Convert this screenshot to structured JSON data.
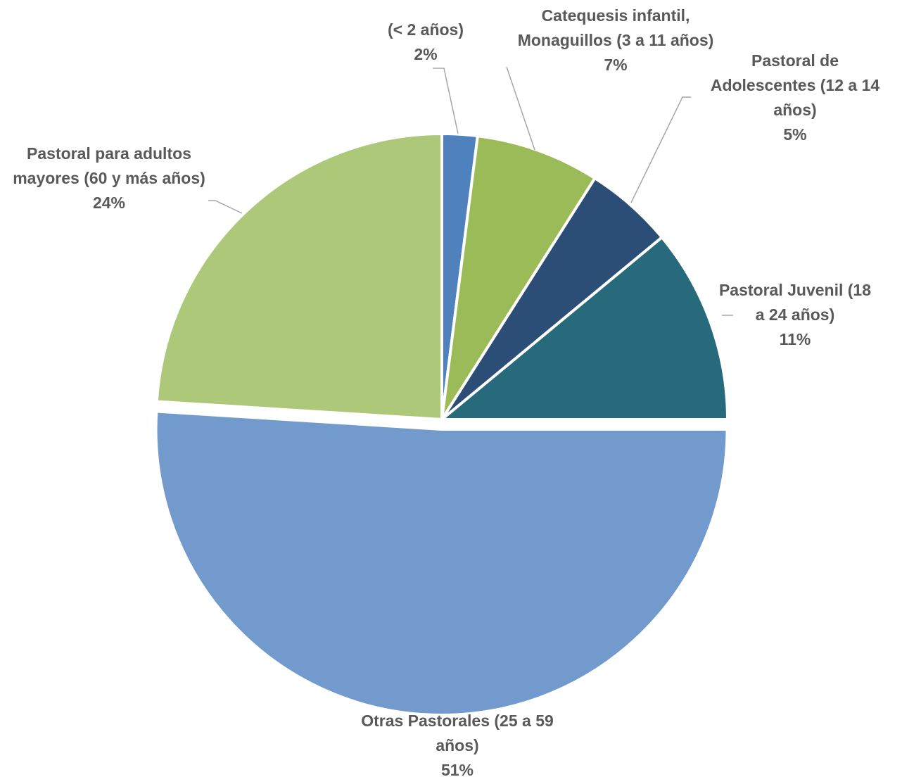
{
  "chart_data": {
    "type": "pie",
    "title": "",
    "slices": [
      {
        "label_lines": [
          "(< 2 años)"
        ],
        "value": 2,
        "value_label": "2%",
        "color": "#4F81BD"
      },
      {
        "label_lines": [
          "Catequesis infantil,",
          "Monaguillos (3 a 11 años)"
        ],
        "value": 7,
        "value_label": "7%",
        "color": "#9BBB59"
      },
      {
        "label_lines": [
          "Pastoral de",
          "Adolescentes (12 a 14",
          "años)"
        ],
        "value": 5,
        "value_label": "5%",
        "color": "#2C4D75"
      },
      {
        "label_lines": [
          "Pastoral Juvenil (18",
          "a 24 años)"
        ],
        "value": 11,
        "value_label": "11%",
        "color": "#276A7C"
      },
      {
        "label_lines": [
          "Otras Pastorales  (25 a 59",
          "años)"
        ],
        "value": 51,
        "value_label": "51%",
        "color": "#729ACC",
        "exploded": true
      },
      {
        "label_lines": [
          "Pastoral para adultos",
          "mayores (60 y más años)"
        ],
        "value": 24,
        "value_label": "24%",
        "color": "#ADC878"
      }
    ],
    "start_angle_deg": 0,
    "direction": "clockwise",
    "legend": "none",
    "data_labels": "outside with leader lines"
  }
}
